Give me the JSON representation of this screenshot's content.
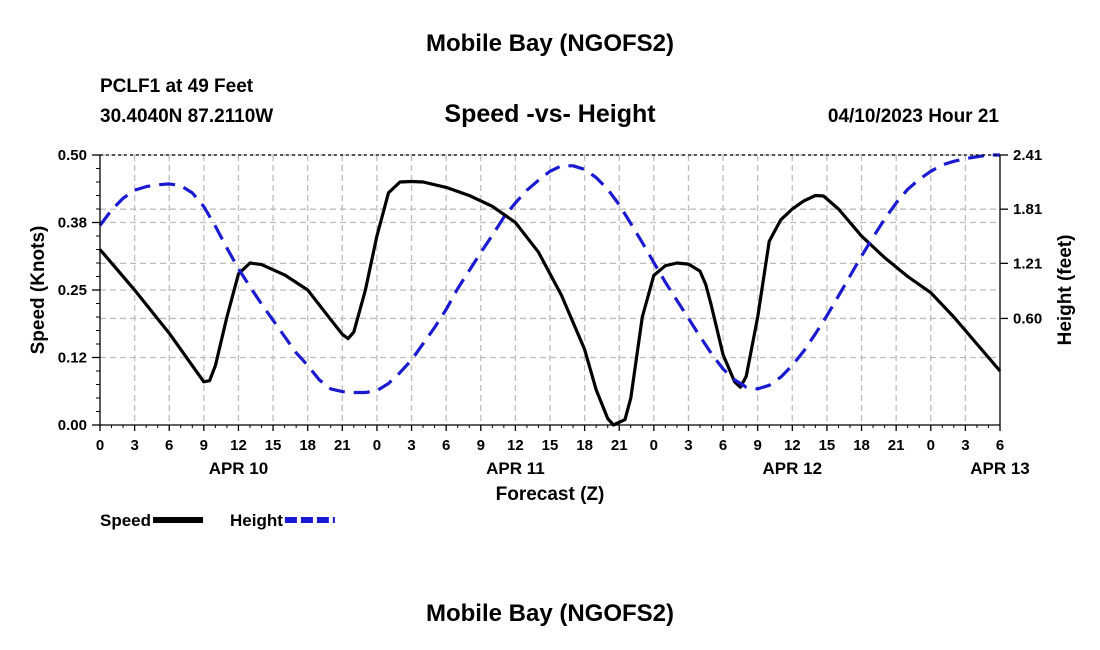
{
  "page": {
    "title_top": "Mobile Bay (NGOFS2)",
    "title_bottom": "Mobile Bay (NGOFS2)",
    "station_line": "PCLF1 at 49 Feet",
    "coords_line": "30.4040N  87.2110W",
    "datetime": "04/10/2023 Hour 21"
  },
  "chart_data": {
    "type": "line",
    "title": "Speed -vs- Height",
    "xlabel": "Forecast (Z)",
    "ylabel": "Speed (Knots)",
    "y2label": "Height (feet)",
    "x_range_hours": [
      0,
      78
    ],
    "ylim": [
      0,
      0.5
    ],
    "y2lim": [
      -0.58,
      2.41
    ],
    "y_ticks": [
      "0.00",
      "0.12",
      "0.25",
      "0.38",
      "0.50"
    ],
    "y_tick_values": [
      0,
      0.125,
      0.25,
      0.375,
      0.5
    ],
    "y2_ticks": [
      "0.60",
      "1.21",
      "1.81",
      "2.41"
    ],
    "y2_tick_values": [
      0.6,
      1.21,
      1.81,
      2.41
    ],
    "x_tick_labels": [
      "0",
      "3",
      "6",
      "9",
      "12",
      "15",
      "18",
      "21",
      "0",
      "3",
      "6",
      "9",
      "12",
      "15",
      "18",
      "21",
      "0",
      "3",
      "6",
      "9",
      "12",
      "15",
      "18",
      "21",
      "0",
      "3",
      "6"
    ],
    "date_labels": [
      {
        "label": "APR 10",
        "hour": 12
      },
      {
        "label": "APR 11",
        "hour": 36
      },
      {
        "label": "APR 12",
        "hour": 60
      },
      {
        "label": "APR 13",
        "hour": 78
      }
    ],
    "grid": true,
    "legend": [
      {
        "name": "Speed",
        "color": "#000000",
        "dash": "solid"
      },
      {
        "name": "Height",
        "color": "#1a1ad0",
        "dash": "dashed"
      }
    ],
    "series": [
      {
        "name": "Speed",
        "axis": "left",
        "color": "#000000",
        "points": [
          [
            0,
            0.325
          ],
          [
            3,
            0.25
          ],
          [
            6,
            0.17
          ],
          [
            9,
            0.08
          ],
          [
            9.5,
            0.082
          ],
          [
            10,
            0.11
          ],
          [
            11,
            0.2
          ],
          [
            12,
            0.28
          ],
          [
            13,
            0.3
          ],
          [
            14,
            0.297
          ],
          [
            16,
            0.278
          ],
          [
            18,
            0.25
          ],
          [
            20,
            0.195
          ],
          [
            21,
            0.168
          ],
          [
            21.5,
            0.16
          ],
          [
            22,
            0.172
          ],
          [
            23,
            0.25
          ],
          [
            24,
            0.35
          ],
          [
            25,
            0.43
          ],
          [
            26,
            0.45
          ],
          [
            27,
            0.451
          ],
          [
            28,
            0.45
          ],
          [
            30,
            0.44
          ],
          [
            32,
            0.425
          ],
          [
            34,
            0.405
          ],
          [
            36,
            0.375
          ],
          [
            38,
            0.32
          ],
          [
            40,
            0.24
          ],
          [
            42,
            0.14
          ],
          [
            43,
            0.065
          ],
          [
            44,
            0.012
          ],
          [
            44.5,
            0
          ],
          [
            45.5,
            0.01
          ],
          [
            46,
            0.05
          ],
          [
            47,
            0.2
          ],
          [
            48,
            0.277
          ],
          [
            49,
            0.295
          ],
          [
            50,
            0.3
          ],
          [
            51,
            0.298
          ],
          [
            52,
            0.285
          ],
          [
            52.5,
            0.26
          ],
          [
            53,
            0.22
          ],
          [
            54,
            0.13
          ],
          [
            55,
            0.08
          ],
          [
            55.5,
            0.07
          ],
          [
            56,
            0.09
          ],
          [
            57,
            0.2
          ],
          [
            58,
            0.34
          ],
          [
            59,
            0.38
          ],
          [
            60,
            0.4
          ],
          [
            61,
            0.415
          ],
          [
            62,
            0.425
          ],
          [
            62.7,
            0.424
          ],
          [
            64,
            0.4
          ],
          [
            66,
            0.35
          ],
          [
            68,
            0.31
          ],
          [
            70,
            0.275
          ],
          [
            72,
            0.245
          ],
          [
            74,
            0.2
          ],
          [
            76,
            0.15
          ],
          [
            78,
            0.1
          ]
        ]
      },
      {
        "name": "Height",
        "axis": "right",
        "color": "#1a1ad0",
        "points": [
          [
            0,
            1.63
          ],
          [
            1,
            1.8
          ],
          [
            2,
            1.93
          ],
          [
            3,
            2.02
          ],
          [
            4,
            2.06
          ],
          [
            5,
            2.08
          ],
          [
            6,
            2.09
          ],
          [
            7,
            2.07
          ],
          [
            8,
            1.99
          ],
          [
            9,
            1.84
          ],
          [
            10,
            1.62
          ],
          [
            11,
            1.38
          ],
          [
            12,
            1.15
          ],
          [
            13,
            0.95
          ],
          [
            14,
            0.76
          ],
          [
            15,
            0.58
          ],
          [
            16,
            0.4
          ],
          [
            17,
            0.22
          ],
          [
            18,
            0.08
          ],
          [
            19,
            -0.08
          ],
          [
            20,
            -0.18
          ],
          [
            21,
            -0.21
          ],
          [
            22,
            -0.22
          ],
          [
            23,
            -0.22
          ],
          [
            24,
            -0.2
          ],
          [
            25,
            -0.12
          ],
          [
            26,
            0
          ],
          [
            27,
            0.14
          ],
          [
            28,
            0.32
          ],
          [
            29,
            0.5
          ],
          [
            30,
            0.7
          ],
          [
            31,
            0.93
          ],
          [
            32,
            1.13
          ],
          [
            33,
            1.33
          ],
          [
            34,
            1.52
          ],
          [
            35,
            1.72
          ],
          [
            36,
            1.88
          ],
          [
            37,
            2.02
          ],
          [
            38,
            2.13
          ],
          [
            39,
            2.23
          ],
          [
            40,
            2.29
          ],
          [
            41,
            2.29
          ],
          [
            42,
            2.25
          ],
          [
            43,
            2.16
          ],
          [
            44,
            2.03
          ],
          [
            45,
            1.86
          ],
          [
            46,
            1.65
          ],
          [
            47,
            1.44
          ],
          [
            48,
            1.22
          ],
          [
            49,
            1.0
          ],
          [
            50,
            0.8
          ],
          [
            51,
            0.6
          ],
          [
            52,
            0.4
          ],
          [
            53,
            0.21
          ],
          [
            54,
            0.04
          ],
          [
            55,
            -0.08
          ],
          [
            56,
            -0.16
          ],
          [
            57,
            -0.18
          ],
          [
            58,
            -0.14
          ],
          [
            59,
            -0.05
          ],
          [
            60,
            0.08
          ],
          [
            61,
            0.24
          ],
          [
            62,
            0.43
          ],
          [
            63,
            0.63
          ],
          [
            64,
            0.85
          ],
          [
            65,
            1.07
          ],
          [
            66,
            1.29
          ],
          [
            67,
            1.5
          ],
          [
            68,
            1.7
          ],
          [
            69,
            1.88
          ],
          [
            70,
            2.03
          ],
          [
            71,
            2.14
          ],
          [
            72,
            2.23
          ],
          [
            73,
            2.3
          ],
          [
            74,
            2.34
          ],
          [
            75,
            2.37
          ],
          [
            76,
            2.39
          ],
          [
            77,
            2.41
          ],
          [
            78,
            2.41
          ]
        ]
      }
    ]
  }
}
